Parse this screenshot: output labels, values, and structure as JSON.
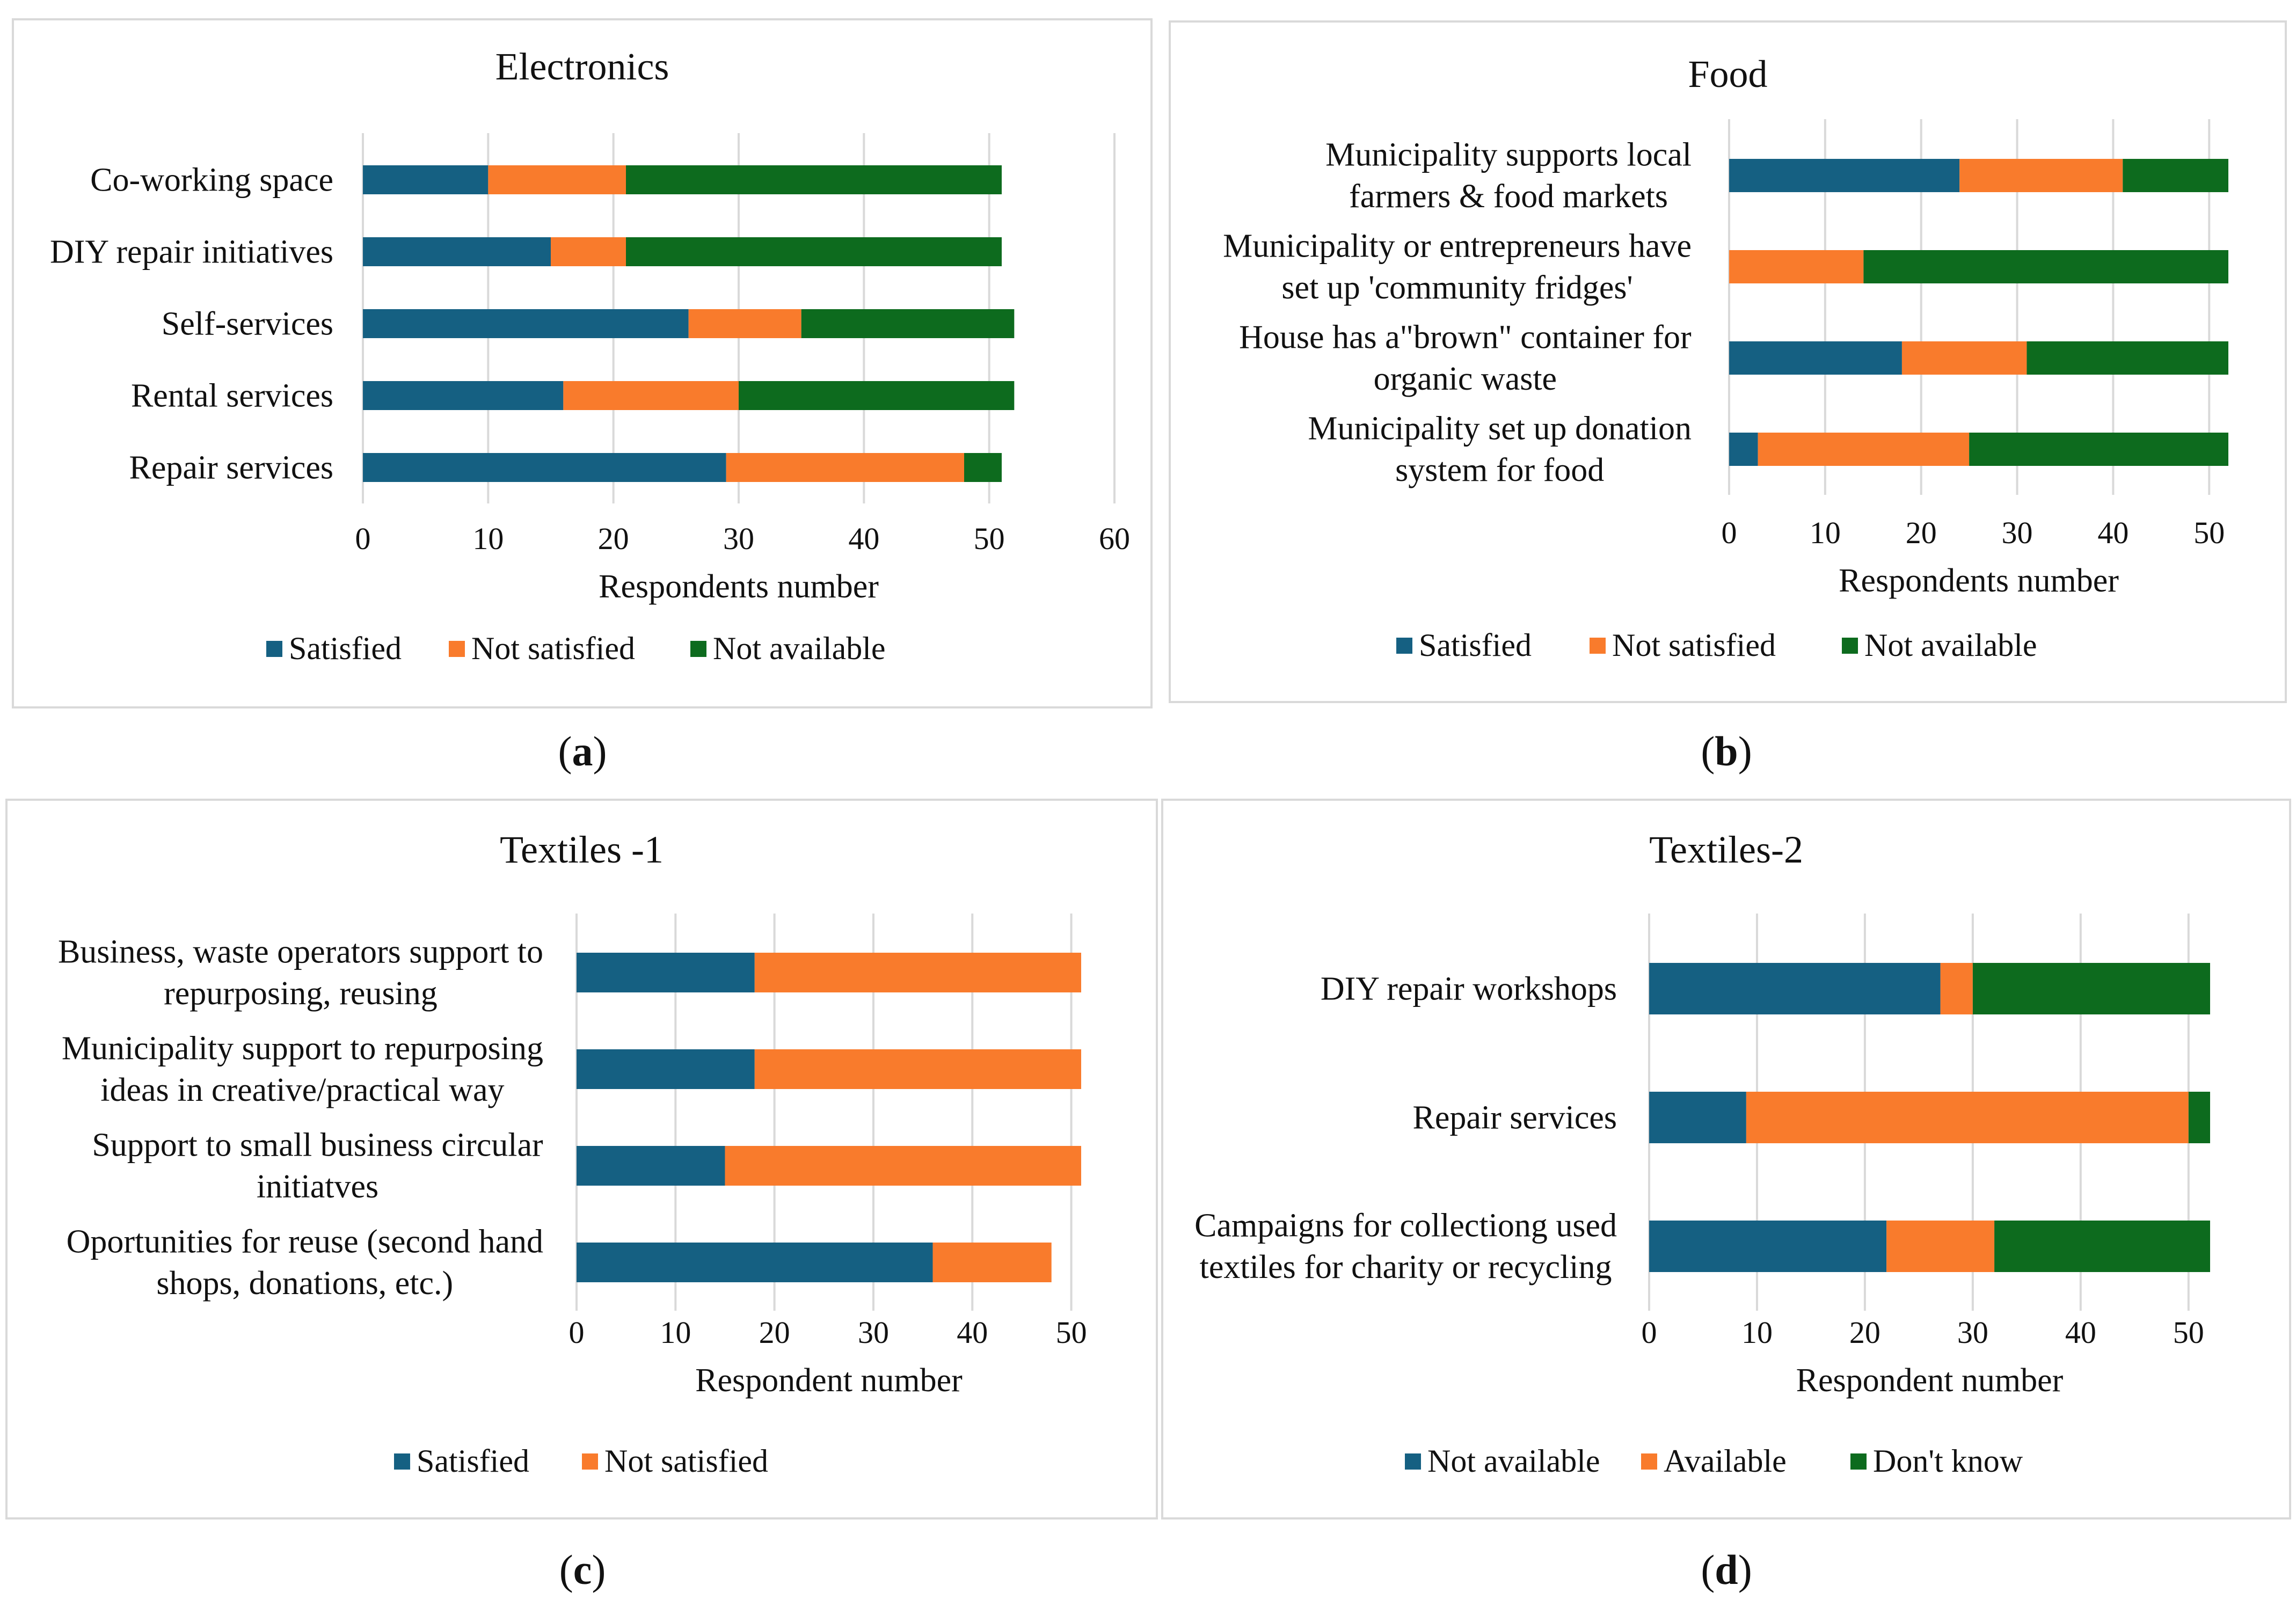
{
  "panels": [
    {
      "letter": "a",
      "chart_data": {
        "type": "bar",
        "orientation": "horizontal",
        "stacked": true,
        "title": "Electronics",
        "xlabel": "Respondents number",
        "ylabel": "",
        "xlim": [
          0,
          60
        ],
        "xticks": [
          0,
          10,
          20,
          30,
          40,
          50,
          60
        ],
        "grid": true,
        "legend_position": "bottom",
        "categories": [
          [
            "Co-working space"
          ],
          [
            "DIY repair initiatives"
          ],
          [
            "Self-services"
          ],
          [
            "Rental services"
          ],
          [
            "Repair services"
          ]
        ],
        "series": [
          {
            "name": "Satisfied",
            "color": "#156082",
            "values": [
              10,
              15,
              26,
              16,
              29
            ]
          },
          {
            "name": "Not satisfied",
            "color": "#f97b2c",
            "values": [
              11,
              6,
              9,
              14,
              19
            ]
          },
          {
            "name": "Not available",
            "color": "#0d6b1e",
            "values": [
              30,
              30,
              17,
              22,
              3
            ]
          }
        ]
      }
    },
    {
      "letter": "b",
      "chart_data": {
        "type": "bar",
        "orientation": "horizontal",
        "stacked": true,
        "title": "Food",
        "xlabel": "Respondents number",
        "ylabel": "",
        "xlim": [
          0,
          52
        ],
        "xticks": [
          0,
          10,
          20,
          30,
          40,
          50
        ],
        "grid": true,
        "legend_position": "bottom",
        "categories": [
          [
            "Municipality supports local",
            "farmers & food markets"
          ],
          [
            "Municipality or entrepreneurs have",
            "set up 'community fridges'"
          ],
          [
            "House has a\"brown\" container for",
            "organic waste"
          ],
          [
            "Municipality set up donation",
            "system for food"
          ]
        ],
        "series": [
          {
            "name": "Satisfied",
            "color": "#156082",
            "values": [
              24,
              0,
              18,
              3
            ]
          },
          {
            "name": "Not satisfied",
            "color": "#f97b2c",
            "values": [
              17,
              14,
              13,
              22
            ]
          },
          {
            "name": "Not available",
            "color": "#0d6b1e",
            "values": [
              11,
              38,
              21,
              27
            ]
          }
        ]
      }
    },
    {
      "letter": "c",
      "chart_data": {
        "type": "bar",
        "orientation": "horizontal",
        "stacked": true,
        "title": "Textiles -1",
        "xlabel": "Respondent number",
        "ylabel": "",
        "xlim": [
          0,
          51
        ],
        "xticks": [
          0,
          10,
          20,
          30,
          40,
          50
        ],
        "grid": true,
        "legend_position": "bottom",
        "categories": [
          [
            "Business, waste operators support to",
            "repurposing, reusing"
          ],
          [
            "Municipality support to repurposing",
            "ideas in creative/practical way"
          ],
          [
            "Support to small business circular",
            "initiatves"
          ],
          [
            "Oportunities for  reuse (second hand",
            "shops, donations, etc.)"
          ]
        ],
        "series": [
          {
            "name": "Satisfied",
            "color": "#156082",
            "values": [
              18,
              18,
              15,
              36
            ]
          },
          {
            "name": "Not satisfied",
            "color": "#f97b2c",
            "values": [
              33,
              33,
              36,
              12
            ]
          }
        ]
      }
    },
    {
      "letter": "d",
      "chart_data": {
        "type": "bar",
        "orientation": "horizontal",
        "stacked": true,
        "title": "Textiles-2",
        "xlabel": "Respondent number",
        "ylabel": "",
        "xlim": [
          0,
          52
        ],
        "xticks": [
          0,
          10,
          20,
          30,
          40,
          50
        ],
        "grid": true,
        "legend_position": "bottom",
        "categories": [
          [
            "DIY repair workshops"
          ],
          [
            "Repair services"
          ],
          [
            "Campaigns for collectiong used",
            "textiles for charity or recycling"
          ]
        ],
        "series": [
          {
            "name": "Not available",
            "color": "#156082",
            "values": [
              27,
              9,
              22
            ]
          },
          {
            "name": "Available",
            "color": "#f97b2c",
            "values": [
              3,
              41,
              10
            ]
          },
          {
            "name": "Don't know",
            "color": "#0d6b1e",
            "values": [
              22,
              2,
              20
            ]
          }
        ]
      }
    }
  ]
}
